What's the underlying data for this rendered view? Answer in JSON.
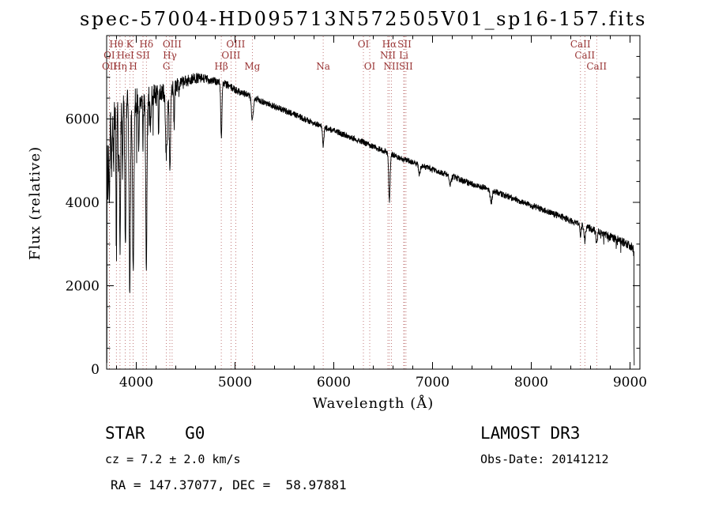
{
  "chart_data": {
    "type": "line",
    "title": "spec-57004-HD095713N572505V01_sp16-157.fits",
    "xlabel": "Wavelength (Å)",
    "ylabel": "Flux (relative)",
    "xlim": [
      3700,
      9100
    ],
    "ylim": [
      0,
      8000
    ],
    "xticks": [
      4000,
      5000,
      6000,
      7000,
      8000,
      9000
    ],
    "yticks": [
      0,
      2000,
      4000,
      6000
    ],
    "grid": false,
    "line_color": "#000000",
    "marker_line_color": "#b25858",
    "marker_label_color": "#993434",
    "continuum": {
      "wavelengths": [
        3700,
        3800,
        3900,
        4000,
        4100,
        4200,
        4300,
        4400,
        4500,
        4600,
        4700,
        4800,
        4900,
        5000,
        5100,
        5200,
        5300,
        5400,
        5500,
        5600,
        5700,
        5800,
        5900,
        6000,
        6100,
        6200,
        6300,
        6400,
        6500,
        6600,
        6700,
        6800,
        6900,
        7000,
        7100,
        7200,
        7300,
        7400,
        7500,
        7600,
        7700,
        7800,
        7900,
        8000,
        8100,
        8200,
        8300,
        8400,
        8500,
        8600,
        8700,
        8800,
        8900,
        9000,
        9060
      ],
      "flux": [
        6100,
        6250,
        6350,
        6450,
        6500,
        6600,
        6650,
        6800,
        6900,
        6980,
        6960,
        6900,
        6840,
        6700,
        6600,
        6500,
        6400,
        6300,
        6200,
        6120,
        6000,
        5900,
        5800,
        5720,
        5630,
        5540,
        5440,
        5340,
        5240,
        5140,
        5040,
        4960,
        4870,
        4790,
        4700,
        4620,
        4530,
        4440,
        4370,
        4290,
        4200,
        4110,
        4020,
        3930,
        3840,
        3750,
        3660,
        3560,
        3460,
        3370,
        3280,
        3180,
        3080,
        2960,
        2870
      ]
    },
    "absorption_features": [
      {
        "wavelength": 3712,
        "depth": 2000,
        "sigma": 4
      },
      {
        "wavelength": 3727,
        "depth": 1900,
        "sigma": 5
      },
      {
        "wavelength": 3750,
        "depth": 1500,
        "sigma": 4
      },
      {
        "wavelength": 3770,
        "depth": 1700,
        "sigma": 4
      },
      {
        "wavelength": 3798,
        "depth": 2800,
        "sigma": 5
      },
      {
        "wavelength": 3820,
        "depth": 1700,
        "sigma": 4
      },
      {
        "wavelength": 3835,
        "depth": 3400,
        "sigma": 5
      },
      {
        "wavelength": 3860,
        "depth": 1600,
        "sigma": 4
      },
      {
        "wavelength": 3889,
        "depth": 3400,
        "sigma": 6
      },
      {
        "wavelength": 3934,
        "depth": 4400,
        "sigma": 7
      },
      {
        "wavelength": 3969,
        "depth": 4100,
        "sigma": 7
      },
      {
        "wavelength": 4026,
        "depth": 1300,
        "sigma": 4
      },
      {
        "wavelength": 4068,
        "depth": 1100,
        "sigma": 4
      },
      {
        "wavelength": 4102,
        "depth": 4200,
        "sigma": 6
      },
      {
        "wavelength": 4144,
        "depth": 900,
        "sigma": 4
      },
      {
        "wavelength": 4226,
        "depth": 1000,
        "sigma": 4
      },
      {
        "wavelength": 4305,
        "depth": 1500,
        "sigma": 9
      },
      {
        "wavelength": 4340,
        "depth": 1900,
        "sigma": 7
      },
      {
        "wavelength": 4383,
        "depth": 900,
        "sigma": 4
      },
      {
        "wavelength": 4861,
        "depth": 1300,
        "sigma": 6
      },
      {
        "wavelength": 5175,
        "depth": 550,
        "sigma": 9
      },
      {
        "wavelength": 5893,
        "depth": 450,
        "sigma": 7
      },
      {
        "wavelength": 6563,
        "depth": 1150,
        "sigma": 7
      },
      {
        "wavelength": 6867,
        "depth": 250,
        "sigma": 8
      },
      {
        "wavelength": 7180,
        "depth": 200,
        "sigma": 10
      },
      {
        "wavelength": 7594,
        "depth": 300,
        "sigma": 9
      },
      {
        "wavelength": 8498,
        "depth": 250,
        "sigma": 6
      },
      {
        "wavelength": 8542,
        "depth": 350,
        "sigma": 7
      },
      {
        "wavelength": 8662,
        "depth": 300,
        "sigma": 7
      }
    ],
    "noise_profile": {
      "wavelengths": [
        3700,
        3900,
        4100,
        4400,
        4800,
        5500,
        6500,
        7500,
        8500,
        9040
      ],
      "amplitude": [
        620,
        480,
        360,
        210,
        120,
        95,
        85,
        90,
        105,
        135
      ]
    },
    "spectral_lines": [
      {
        "label": "OI",
        "wavelength": 3727,
        "row": 2
      },
      {
        "label": "OII",
        "wavelength": 3729,
        "row": 3
      },
      {
        "label": "Hθ",
        "wavelength": 3798,
        "row": 1
      },
      {
        "label": "Hη",
        "wavelength": 3835,
        "row": 3
      },
      {
        "label": "HeI",
        "wavelength": 3889,
        "row": 2
      },
      {
        "label": "K",
        "wavelength": 3934,
        "row": 1
      },
      {
        "label": "H",
        "wavelength": 3969,
        "row": 3
      },
      {
        "label": "SII",
        "wavelength": 4068,
        "row": 2
      },
      {
        "label": "Hδ",
        "wavelength": 4102,
        "row": 1
      },
      {
        "label": "G",
        "wavelength": 4305,
        "row": 3
      },
      {
        "label": "Hγ",
        "wavelength": 4340,
        "row": 2
      },
      {
        "label": "OIII",
        "wavelength": 4363,
        "row": 1
      },
      {
        "label": "Hβ",
        "wavelength": 4861,
        "row": 3
      },
      {
        "label": "OIII",
        "wavelength": 4959,
        "row": 2
      },
      {
        "label": "OIII",
        "wavelength": 5007,
        "row": 1
      },
      {
        "label": "Mg",
        "wavelength": 5175,
        "row": 3
      },
      {
        "label": "Na",
        "wavelength": 5893,
        "row": 3
      },
      {
        "label": "OI",
        "wavelength": 6300,
        "row": 1
      },
      {
        "label": "OI",
        "wavelength": 6364,
        "row": 3
      },
      {
        "label": "NII",
        "wavelength": 6548,
        "row": 2
      },
      {
        "label": "Hα",
        "wavelength": 6563,
        "row": 1
      },
      {
        "label": "NII",
        "wavelength": 6583,
        "row": 3
      },
      {
        "label": "Li",
        "wavelength": 6708,
        "row": 2
      },
      {
        "label": "SII",
        "wavelength": 6716,
        "row": 1
      },
      {
        "label": "SII",
        "wavelength": 6731,
        "row": 3
      },
      {
        "label": "CaII",
        "wavelength": 8498,
        "row": 1
      },
      {
        "label": "CaII",
        "wavelength": 8542,
        "row": 2
      },
      {
        "label": "CaII",
        "wavelength": 8662,
        "row": 3
      }
    ]
  },
  "footer": {
    "classification": "STAR    G0",
    "survey": "LAMOST DR3",
    "cz": "cz = 7.2 ± 2.0 km/s",
    "obs_date": "Obs-Date: 20141212",
    "coords": "RA = 147.37077, DEC =  58.97881"
  }
}
